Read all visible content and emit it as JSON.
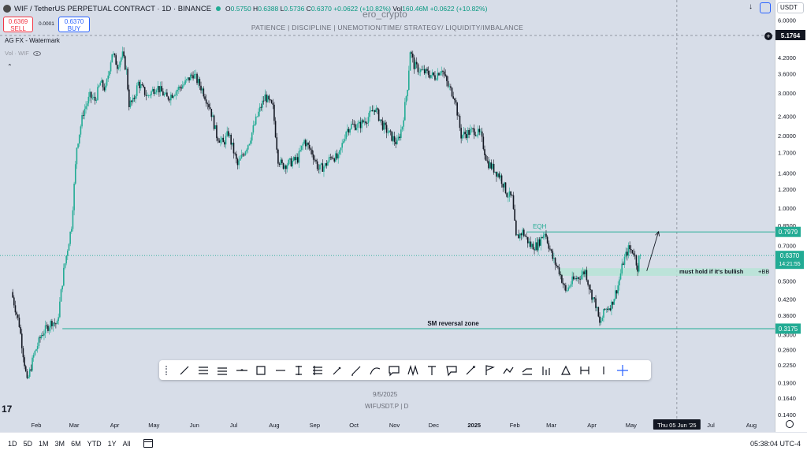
{
  "header": {
    "symbol_title": "WIF / TetherUS PERPETUAL CONTRACT · 1D · BINANCE",
    "ohlc": {
      "o_label": "O",
      "o": "0.5750",
      "h_label": "H",
      "h": "0.6388",
      "l_label": "L",
      "l": "0.5736",
      "c_label": "C",
      "c": "0.6370",
      "change": "+0.0622 (+10.82%)",
      "vol_label": "Vol",
      "vol": "160.46M",
      "vol_change": "+0.0622 (+10.82%)"
    },
    "sell_price": "0.6369",
    "sell_label": "SELL",
    "buy_price": "0.6370",
    "buy_label": "BUY",
    "spread": "0.0001",
    "indicator_name": "AG FX - Watermark",
    "volume_label": "Vol · WIF",
    "watermark_name": "ero_crypto",
    "tagline": "PATIENCE   |   DISCIPLINE   |   UNEMOTION/TIME/ STRATEGY/ LIQUIDITY/IMBALANCE",
    "currency": "USDT",
    "logo_text": "17",
    "date_watermark": "9/5/2025",
    "symbol_watermark": "WIFUSDT.P  |  D"
  },
  "icons": [
    "arrow-down-icon",
    "camera-icon",
    "chevron-down-icon",
    "eye-icon",
    "collapse-icon",
    "zoom-icon",
    "calendar-icon",
    "settings-icon",
    "tradingview-logo-icon"
  ],
  "colors": {
    "up": "#22ab94",
    "down": "#131722",
    "level": "#22ab94",
    "current": "#22ab94",
    "sell": "#f23645",
    "buy": "#2962ff"
  },
  "bottom_bar": {
    "timeframes": [
      "1D",
      "5D",
      "1M",
      "3M",
      "6M",
      "YTD",
      "1Y",
      "All"
    ],
    "clock": "05:38:04 UTC-4"
  },
  "toolbar": {
    "tools": [
      "trend-line",
      "ray",
      "parallel-channel",
      "horizontal-line",
      "rectangle",
      "horizontal-ray",
      "vertical-line",
      "fib-retracement",
      "brush",
      "pen",
      "curve",
      "comment",
      "pattern",
      "text",
      "callout",
      "arrow-marker",
      "flag",
      "path",
      "polyline",
      "long-position",
      "triangle",
      "date-range",
      "cursor-line",
      "crosshair"
    ]
  },
  "chart_data": {
    "type": "candlestick",
    "scale": "log",
    "ylim": [
      0.125,
      7.0
    ],
    "grid": false,
    "y_ticks": [
      "6.0000",
      "4.2000",
      "3.6000",
      "3.0000",
      "2.4000",
      "2.0000",
      "1.7000",
      "1.4000",
      "1.2000",
      "1.0000",
      "0.8500",
      "0.7000",
      "0.6000",
      "0.5000",
      "0.4200",
      "0.3600",
      "0.3000",
      "0.2600",
      "0.2250",
      "0.1900",
      "0.1640",
      "0.1400"
    ],
    "x_ticks": [
      "Feb",
      "Mar",
      "Apr",
      "May",
      "Jun",
      "Jul",
      "Aug",
      "Sep",
      "Oct",
      "Nov",
      "Dec",
      "2025",
      "Feb",
      "Mar",
      "Apr",
      "May",
      "Thu 05 Jun '25",
      "Jul",
      "Aug"
    ],
    "crosshair": {
      "date": "Thu 05 Jun '25",
      "price": "5.1764"
    },
    "current_price": {
      "value": 0.637,
      "label": "0.6370",
      "countdown": "14:21:55"
    },
    "anchors": [
      [
        "2024-01-14",
        0.45
      ],
      [
        "2024-01-20",
        0.33
      ],
      [
        "2024-01-26",
        0.19
      ],
      [
        "2024-01-31",
        0.245
      ],
      [
        "2024-02-06",
        0.3
      ],
      [
        "2024-02-14",
        0.34
      ],
      [
        "2024-02-18",
        0.33
      ],
      [
        "2024-02-23",
        0.55
      ],
      [
        "2024-02-29",
        0.85
      ],
      [
        "2024-03-04",
        1.8
      ],
      [
        "2024-03-09",
        2.5
      ],
      [
        "2024-03-14",
        2.9
      ],
      [
        "2024-03-18",
        2.8
      ],
      [
        "2024-03-22",
        3.3
      ],
      [
        "2024-03-26",
        3.1
      ],
      [
        "2024-03-31",
        4.4
      ],
      [
        "2024-04-04",
        3.9
      ],
      [
        "2024-04-08",
        4.3
      ],
      [
        "2024-04-11",
        3.7
      ],
      [
        "2024-04-13",
        2.7
      ],
      [
        "2024-04-16",
        2.75
      ],
      [
        "2024-04-20",
        3.3
      ],
      [
        "2024-04-27",
        2.9
      ],
      [
        "2024-05-04",
        3.2
      ],
      [
        "2024-05-12",
        2.85
      ],
      [
        "2024-05-20",
        3.1
      ],
      [
        "2024-05-26",
        3.3
      ],
      [
        "2024-06-01",
        3.6
      ],
      [
        "2024-06-08",
        3.1
      ],
      [
        "2024-06-14",
        2.6
      ],
      [
        "2024-06-19",
        2.0
      ],
      [
        "2024-06-24",
        1.85
      ],
      [
        "2024-06-28",
        2.05
      ],
      [
        "2024-07-05",
        1.5
      ],
      [
        "2024-07-14",
        1.9
      ],
      [
        "2024-07-20",
        2.4
      ],
      [
        "2024-07-26",
        2.9
      ],
      [
        "2024-08-01",
        2.6
      ],
      [
        "2024-08-05",
        1.6
      ],
      [
        "2024-08-08",
        1.5
      ],
      [
        "2024-08-15",
        1.55
      ],
      [
        "2024-08-20",
        1.6
      ],
      [
        "2024-08-25",
        1.9
      ],
      [
        "2024-08-31",
        1.7
      ],
      [
        "2024-09-05",
        1.45
      ],
      [
        "2024-09-10",
        1.5
      ],
      [
        "2024-09-15",
        1.65
      ],
      [
        "2024-09-20",
        1.6
      ],
      [
        "2024-09-26",
        2.1
      ],
      [
        "2024-09-30",
        2.2
      ],
      [
        "2024-10-06",
        2.2
      ],
      [
        "2024-10-12",
        2.35
      ],
      [
        "2024-10-18",
        2.6
      ],
      [
        "2024-10-24",
        2.2
      ],
      [
        "2024-10-30",
        2.0
      ],
      [
        "2024-11-04",
        1.85
      ],
      [
        "2024-11-08",
        2.2
      ],
      [
        "2024-11-12",
        3.2
      ],
      [
        "2024-11-14",
        4.5
      ],
      [
        "2024-11-17",
        3.9
      ],
      [
        "2024-11-22",
        3.7
      ],
      [
        "2024-11-28",
        3.6
      ],
      [
        "2024-12-03",
        3.5
      ],
      [
        "2024-12-08",
        3.8
      ],
      [
        "2024-12-13",
        3.2
      ],
      [
        "2024-12-18",
        2.9
      ],
      [
        "2024-12-23",
        2.0
      ],
      [
        "2024-12-28",
        2.05
      ],
      [
        "2025-01-02",
        2.1
      ],
      [
        "2025-01-07",
        2.0
      ],
      [
        "2025-01-12",
        1.55
      ],
      [
        "2025-01-17",
        1.45
      ],
      [
        "2025-01-22",
        1.35
      ],
      [
        "2025-01-27",
        1.15
      ],
      [
        "2025-01-31",
        1.1
      ],
      [
        "2025-02-03",
        0.75
      ],
      [
        "2025-02-08",
        0.8
      ],
      [
        "2025-02-14",
        0.7
      ],
      [
        "2025-02-19",
        0.7
      ],
      [
        "2025-02-25",
        0.8
      ],
      [
        "2025-03-03",
        0.62
      ],
      [
        "2025-03-08",
        0.55
      ],
      [
        "2025-03-13",
        0.45
      ],
      [
        "2025-03-18",
        0.5
      ],
      [
        "2025-03-23",
        0.52
      ],
      [
        "2025-03-28",
        0.55
      ],
      [
        "2025-04-01",
        0.45
      ],
      [
        "2025-04-05",
        0.4
      ],
      [
        "2025-04-08",
        0.33
      ],
      [
        "2025-04-12",
        0.38
      ],
      [
        "2025-04-17",
        0.4
      ],
      [
        "2025-04-22",
        0.48
      ],
      [
        "2025-04-26",
        0.6
      ],
      [
        "2025-04-30",
        0.68
      ],
      [
        "2025-05-04",
        0.66
      ],
      [
        "2025-05-07",
        0.57
      ],
      [
        "2025-05-08",
        0.62
      ],
      [
        "2025-05-09",
        0.637
      ]
    ],
    "levels": [
      {
        "name": "EQH",
        "price": 0.7979,
        "label": "0.7979",
        "start": "2025-02-10"
      },
      {
        "name": "SM reversal zone",
        "price": 0.3175,
        "label": "0.3175",
        "start": "2024-02-21"
      }
    ],
    "zone": {
      "label": "must hold if it's bullish",
      "tag": "+BB",
      "top": 0.565,
      "bottom": 0.525,
      "start": "2025-03-07"
    },
    "arrow": {
      "from": [
        "2025-05-13",
        0.55
      ],
      "to": [
        "2025-05-22",
        0.8
      ]
    }
  }
}
